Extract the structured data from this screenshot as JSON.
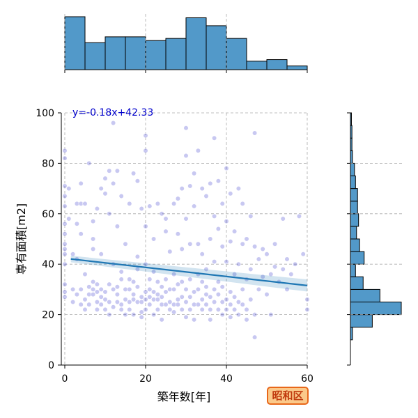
{
  "chart_data": {
    "type": "scatter",
    "xlabel": "築年数[年]",
    "ylabel": "専有面積[m2]",
    "xlim": [
      0,
      60
    ],
    "ylim": [
      0,
      100
    ],
    "x_ticks": [
      "0",
      "20",
      "40",
      "60"
    ],
    "y_ticks": [
      "0",
      "20",
      "40",
      "60",
      "80",
      "100"
    ],
    "grid": true,
    "regression": {
      "label": "y=-0.18x+42.33",
      "slope": -0.18,
      "intercept": 42.33,
      "color": "#1f77b4",
      "label_color": "#0000cc"
    },
    "point_color": "#3a3acc",
    "hist_color": "#5299c9",
    "x_histogram": {
      "bin_edges": [
        0,
        5,
        10,
        15,
        20,
        25,
        30,
        35,
        40,
        45,
        50,
        55,
        60
      ],
      "relative_heights": [
        1.0,
        0.51,
        0.62,
        0.62,
        0.55,
        0.59,
        0.98,
        0.83,
        0.59,
        0.16,
        0.19,
        0.07
      ]
    },
    "y_histogram": {
      "bin_edges": [
        10,
        15,
        20,
        25,
        30,
        35,
        40,
        45,
        50,
        55,
        60,
        65,
        70,
        75,
        80,
        85,
        90,
        95,
        100
      ],
      "relative_widths": [
        0.04,
        0.43,
        1.0,
        0.58,
        0.25,
        0.1,
        0.27,
        0.18,
        0.12,
        0.16,
        0.14,
        0.14,
        0.1,
        0.08,
        0.04,
        0.03,
        0.03,
        0.02
      ]
    },
    "points": [
      [
        0,
        63
      ],
      [
        0,
        67
      ],
      [
        0,
        71
      ],
      [
        0,
        85
      ],
      [
        0,
        82
      ],
      [
        0,
        56
      ],
      [
        0,
        52
      ],
      [
        0,
        48
      ],
      [
        0,
        46
      ],
      [
        0,
        44
      ],
      [
        0,
        40
      ],
      [
        0,
        32
      ],
      [
        0,
        29
      ],
      [
        0,
        27
      ],
      [
        1,
        70
      ],
      [
        1,
        58
      ],
      [
        2,
        30
      ],
      [
        2,
        44
      ],
      [
        2,
        25
      ],
      [
        3,
        64
      ],
      [
        3,
        56
      ],
      [
        3,
        28
      ],
      [
        3,
        42
      ],
      [
        4,
        72
      ],
      [
        4,
        52
      ],
      [
        4,
        24
      ],
      [
        4,
        30
      ],
      [
        4,
        64
      ],
      [
        5,
        36
      ],
      [
        5,
        26
      ],
      [
        5,
        22
      ],
      [
        5,
        64
      ],
      [
        6,
        80
      ],
      [
        6,
        28
      ],
      [
        6,
        31
      ],
      [
        6,
        24
      ],
      [
        7,
        50
      ],
      [
        7,
        28
      ],
      [
        7,
        30
      ],
      [
        7,
        33
      ],
      [
        7,
        57
      ],
      [
        7,
        46
      ],
      [
        8,
        22
      ],
      [
        8,
        25
      ],
      [
        8,
        29
      ],
      [
        8,
        32
      ],
      [
        8,
        62
      ],
      [
        9,
        44
      ],
      [
        9,
        24
      ],
      [
        9,
        27
      ],
      [
        9,
        30
      ],
      [
        9,
        70
      ],
      [
        10,
        22
      ],
      [
        10,
        26
      ],
      [
        10,
        29
      ],
      [
        10,
        68
      ],
      [
        10,
        74
      ],
      [
        11,
        25
      ],
      [
        11,
        20
      ],
      [
        11,
        32
      ],
      [
        11,
        60
      ],
      [
        11,
        77
      ],
      [
        12,
        96
      ],
      [
        12,
        23
      ],
      [
        12,
        30
      ],
      [
        12,
        72
      ],
      [
        12,
        40
      ],
      [
        13,
        77
      ],
      [
        13,
        28
      ],
      [
        13,
        25
      ],
      [
        13,
        31
      ],
      [
        13,
        55
      ],
      [
        14,
        67
      ],
      [
        14,
        34
      ],
      [
        14,
        37
      ],
      [
        14,
        22
      ],
      [
        14,
        24
      ],
      [
        15,
        20
      ],
      [
        15,
        26
      ],
      [
        15,
        30
      ],
      [
        15,
        48
      ],
      [
        16,
        64
      ],
      [
        16,
        30
      ],
      [
        16,
        22
      ],
      [
        16,
        25
      ],
      [
        16,
        34
      ],
      [
        17,
        76
      ],
      [
        17,
        33
      ],
      [
        17,
        26
      ],
      [
        17,
        20
      ],
      [
        17,
        28
      ],
      [
        18,
        73
      ],
      [
        18,
        43
      ],
      [
        18,
        25
      ],
      [
        18,
        31
      ],
      [
        18,
        38
      ],
      [
        19,
        19
      ],
      [
        19,
        21
      ],
      [
        19,
        25
      ],
      [
        19,
        27
      ],
      [
        19,
        62
      ],
      [
        20,
        85
      ],
      [
        20,
        91
      ],
      [
        20,
        55
      ],
      [
        20,
        40
      ],
      [
        20,
        29
      ],
      [
        20,
        22
      ],
      [
        20,
        26
      ],
      [
        21,
        63
      ],
      [
        21,
        34
      ],
      [
        21,
        24
      ],
      [
        21,
        27
      ],
      [
        21,
        30
      ],
      [
        22,
        37
      ],
      [
        22,
        26
      ],
      [
        22,
        20
      ],
      [
        22,
        29
      ],
      [
        22,
        50
      ],
      [
        23,
        64
      ],
      [
        23,
        33
      ],
      [
        23,
        26
      ],
      [
        23,
        22
      ],
      [
        23,
        28
      ],
      [
        24,
        60
      ],
      [
        24,
        24
      ],
      [
        24,
        27
      ],
      [
        24,
        31
      ],
      [
        24,
        18
      ],
      [
        25,
        53
      ],
      [
        25,
        34
      ],
      [
        25,
        29
      ],
      [
        25,
        24
      ],
      [
        25,
        58
      ],
      [
        26,
        45
      ],
      [
        26,
        25
      ],
      [
        26,
        22
      ],
      [
        26,
        30
      ],
      [
        27,
        64
      ],
      [
        27,
        30
      ],
      [
        27,
        24
      ],
      [
        27,
        36
      ],
      [
        27,
        21
      ],
      [
        28,
        66
      ],
      [
        28,
        52
      ],
      [
        28,
        24
      ],
      [
        28,
        26
      ],
      [
        28,
        32
      ],
      [
        29,
        70
      ],
      [
        29,
        46
      ],
      [
        29,
        27
      ],
      [
        29,
        22
      ],
      [
        29,
        33
      ],
      [
        30,
        94
      ],
      [
        30,
        83
      ],
      [
        30,
        58
      ],
      [
        30,
        30
      ],
      [
        30,
        25
      ],
      [
        30,
        19
      ],
      [
        31,
        71
      ],
      [
        31,
        48
      ],
      [
        31,
        34
      ],
      [
        31,
        27
      ],
      [
        31,
        22
      ],
      [
        32,
        76
      ],
      [
        32,
        63
      ],
      [
        32,
        24
      ],
      [
        32,
        29
      ],
      [
        32,
        18
      ],
      [
        33,
        85
      ],
      [
        33,
        48
      ],
      [
        33,
        30
      ],
      [
        33,
        24
      ],
      [
        33,
        36
      ],
      [
        34,
        70
      ],
      [
        34,
        44
      ],
      [
        34,
        26
      ],
      [
        34,
        22
      ],
      [
        34,
        33
      ],
      [
        35,
        67
      ],
      [
        35,
        38
      ],
      [
        35,
        24
      ],
      [
        35,
        28
      ],
      [
        35,
        31
      ],
      [
        36,
        72
      ],
      [
        36,
        50
      ],
      [
        36,
        22
      ],
      [
        36,
        27
      ],
      [
        36,
        18
      ],
      [
        37,
        90
      ],
      [
        37,
        59
      ],
      [
        37,
        41
      ],
      [
        37,
        25
      ],
      [
        37,
        30
      ],
      [
        38,
        73
      ],
      [
        38,
        54
      ],
      [
        38,
        22
      ],
      [
        38,
        28
      ],
      [
        38,
        33
      ],
      [
        39,
        64
      ],
      [
        39,
        47
      ],
      [
        39,
        25
      ],
      [
        39,
        20
      ],
      [
        39,
        31
      ],
      [
        40,
        78
      ],
      [
        40,
        57
      ],
      [
        40,
        41
      ],
      [
        40,
        26
      ],
      [
        40,
        22
      ],
      [
        41,
        68
      ],
      [
        41,
        49
      ],
      [
        41,
        29
      ],
      [
        41,
        24
      ],
      [
        41,
        19
      ],
      [
        42,
        53
      ],
      [
        42,
        36
      ],
      [
        42,
        22
      ],
      [
        42,
        27
      ],
      [
        43,
        70
      ],
      [
        43,
        40
      ],
      [
        43,
        25
      ],
      [
        43,
        20
      ],
      [
        44,
        64
      ],
      [
        44,
        48
      ],
      [
        44,
        30
      ],
      [
        44,
        24
      ],
      [
        45,
        50
      ],
      [
        45,
        34
      ],
      [
        45,
        22
      ],
      [
        45,
        18
      ],
      [
        46,
        59
      ],
      [
        46,
        38
      ],
      [
        46,
        26
      ],
      [
        47,
        92
      ],
      [
        47,
        47
      ],
      [
        47,
        11
      ],
      [
        47,
        20
      ],
      [
        48,
        42
      ],
      [
        48,
        30
      ],
      [
        49,
        46
      ],
      [
        49,
        35
      ],
      [
        50,
        44
      ],
      [
        50,
        28
      ],
      [
        51,
        36
      ],
      [
        51,
        20
      ],
      [
        52,
        48
      ],
      [
        52,
        39
      ],
      [
        53,
        33
      ],
      [
        54,
        58
      ],
      [
        54,
        38
      ],
      [
        55,
        42
      ],
      [
        55,
        30
      ],
      [
        56,
        36
      ],
      [
        57,
        40
      ],
      [
        58,
        59
      ],
      [
        59,
        44
      ],
      [
        60,
        26
      ],
      [
        60,
        22
      ]
    ]
  },
  "badge": {
    "text": "昭和区",
    "border": "#e8671a",
    "fill": "#fbc98a",
    "color": "#c0390d"
  }
}
